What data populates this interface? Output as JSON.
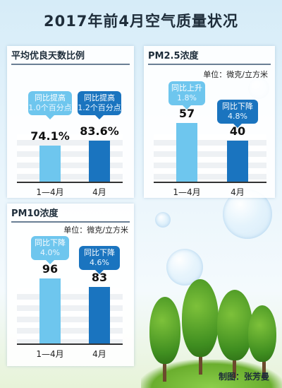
{
  "title": "2017年前4月空气质量状况",
  "credit": "制图：张芳曼",
  "colors": {
    "light": "#6ec6ee",
    "dark": "#1a74bf"
  },
  "chart_data": [
    {
      "type": "bar",
      "title": "平均优良天数比例",
      "unit": "",
      "categories": [
        "1—4月",
        "4月"
      ],
      "values": [
        74.1,
        83.6
      ],
      "value_labels": [
        "74.1%",
        "83.6%"
      ],
      "callouts": [
        [
          "同比提高",
          "1.0个百分点"
        ],
        [
          "同比提高",
          "1.2个百分点"
        ]
      ]
    },
    {
      "type": "bar",
      "title": "PM2.5浓度",
      "unit": "单位：微克/立方米",
      "categories": [
        "1—4月",
        "4月"
      ],
      "values": [
        57,
        40
      ],
      "value_labels": [
        "57",
        "40"
      ],
      "callouts": [
        [
          "同比上升",
          "1.8%"
        ],
        [
          "同比下降",
          "4.8%"
        ]
      ]
    },
    {
      "type": "bar",
      "title": "PM10浓度",
      "unit": "单位：微克/立方米",
      "categories": [
        "1—4月",
        "4月"
      ],
      "values": [
        96,
        83
      ],
      "value_labels": [
        "96",
        "83"
      ],
      "callouts": [
        [
          "同比下降",
          "4.0%"
        ],
        [
          "同比下降",
          "4.6%"
        ]
      ]
    }
  ]
}
